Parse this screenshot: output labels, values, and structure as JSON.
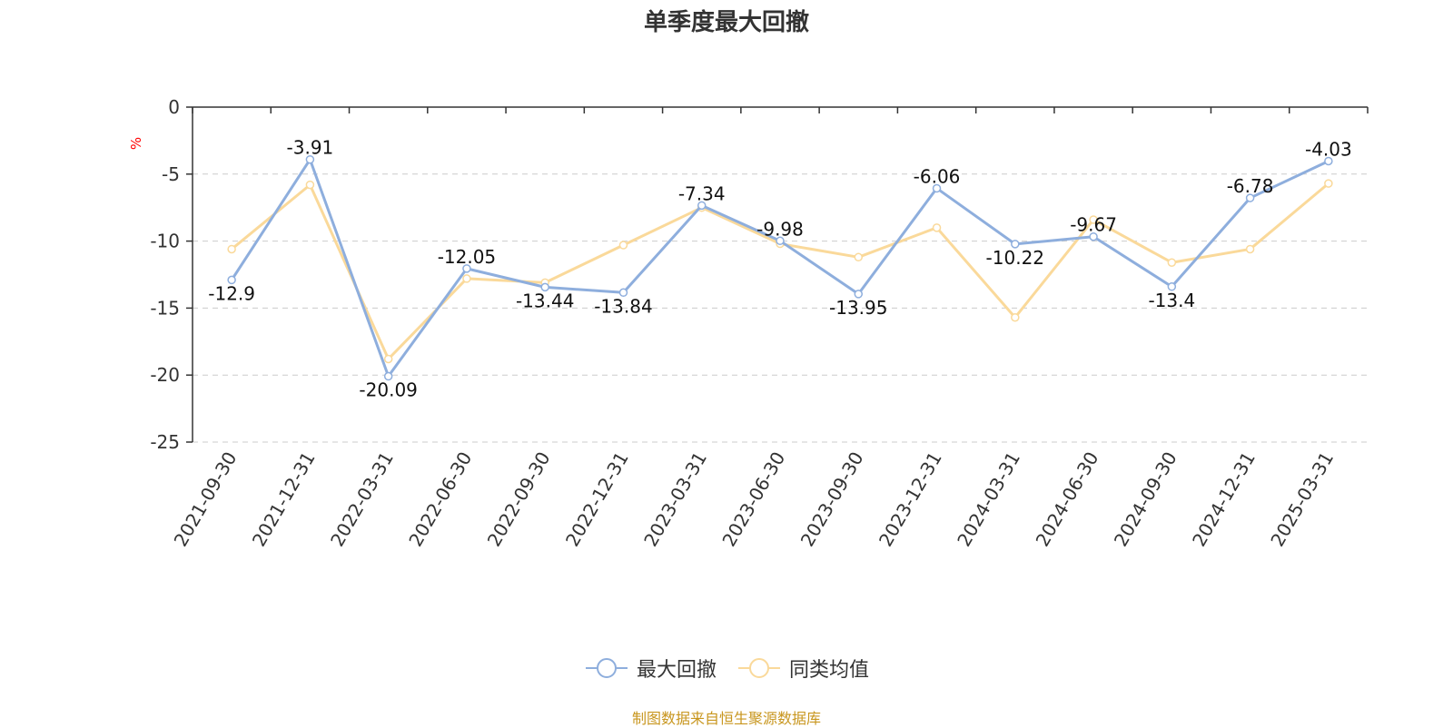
{
  "title": "单季度最大回撤",
  "source_note": "制图数据来自恒生聚源数据库",
  "colors": {
    "series1": "#8eaedd",
    "series2": "#fad99a",
    "axis": "#333333",
    "grid": "#cccccc",
    "unit": "#ff0000"
  },
  "chart_data": {
    "type": "line",
    "title": "单季度最大回撤",
    "ylabel": "%",
    "ylim": [
      -25,
      0
    ],
    "yticks": [
      0,
      -5,
      -10,
      -15,
      -20,
      -25
    ],
    "grid": true,
    "legend_position": "bottom-center",
    "categories": [
      "2021-09-30",
      "2021-12-31",
      "2022-03-31",
      "2022-06-30",
      "2022-09-30",
      "2022-12-31",
      "2023-03-31",
      "2023-06-30",
      "2023-09-30",
      "2023-12-31",
      "2024-03-31",
      "2024-06-30",
      "2024-09-30",
      "2024-12-31",
      "2025-03-31"
    ],
    "series": [
      {
        "name": "最大回撤",
        "values": [
          -12.9,
          -3.91,
          -20.09,
          -12.05,
          -13.44,
          -13.84,
          -7.34,
          -9.98,
          -13.95,
          -6.06,
          -10.22,
          -9.67,
          -13.4,
          -6.78,
          -4.03
        ],
        "labels": [
          "-12.9",
          "-3.91",
          "-20.09",
          "-12.05",
          "-13.44",
          "-13.84",
          "-7.34",
          "-9.98",
          "-13.95",
          "-6.06",
          "-10.22",
          "-9.67",
          "-13.4",
          "-6.78",
          "-4.03"
        ]
      },
      {
        "name": "同类均值",
        "values": [
          -10.6,
          -5.8,
          -18.8,
          -12.8,
          -13.1,
          -10.3,
          -7.5,
          -10.2,
          -11.2,
          -9.0,
          -15.7,
          -8.4,
          -11.6,
          -10.6,
          -5.7
        ]
      }
    ]
  }
}
